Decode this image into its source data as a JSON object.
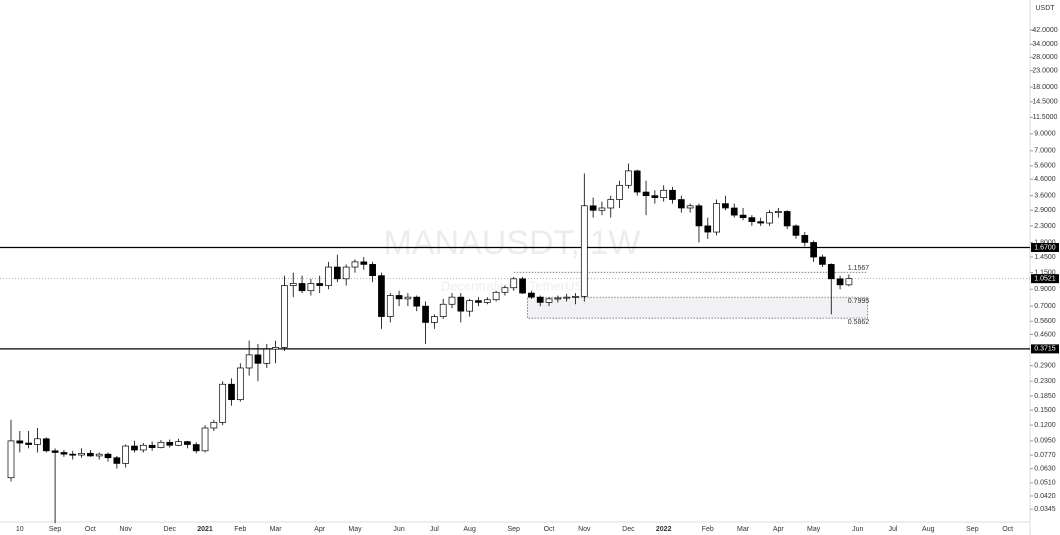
{
  "chart_data": {
    "type": "candlestick",
    "title": "MANAUSDT, 1W",
    "subtitle": "Decentraland / TetherUS",
    "currency": "USDT",
    "log_scale": true,
    "up_color": "#ffffff",
    "down_color": "#000000",
    "ylim": [
      0.0294,
      65.5
    ],
    "yticks": [
      {
        "value": 42,
        "label": "42.0000"
      },
      {
        "value": 34,
        "label": "34.0000"
      },
      {
        "value": 28,
        "label": "28.0000"
      },
      {
        "value": 23,
        "label": "23.0000"
      },
      {
        "value": 18,
        "label": "18.0000"
      },
      {
        "value": 14.5,
        "label": "14.5000"
      },
      {
        "value": 11.5,
        "label": "11.5000"
      },
      {
        "value": 9,
        "label": "9.0000"
      },
      {
        "value": 7,
        "label": "7.0000"
      },
      {
        "value": 5.6,
        "label": "5.6000"
      },
      {
        "value": 4.6,
        "label": "4.6000"
      },
      {
        "value": 3.6,
        "label": "3.6000"
      },
      {
        "value": 2.9,
        "label": "2.9000"
      },
      {
        "value": 2.3,
        "label": "2.3000"
      },
      {
        "value": 1.8,
        "label": "1.8000"
      },
      {
        "value": 1.45,
        "label": "1.4500"
      },
      {
        "value": 1.15,
        "label": "1.1500"
      },
      {
        "value": 0.9,
        "label": "0.9000"
      },
      {
        "value": 0.7,
        "label": "0.7000"
      },
      {
        "value": 0.56,
        "label": "0.5600"
      },
      {
        "value": 0.46,
        "label": "0.4600"
      },
      {
        "value": 0.29,
        "label": "0.2900"
      },
      {
        "value": 0.23,
        "label": "0.2300"
      },
      {
        "value": 0.185,
        "label": "0.1850"
      },
      {
        "value": 0.15,
        "label": "0.1500"
      },
      {
        "value": 0.12,
        "label": "0.1200"
      },
      {
        "value": 0.095,
        "label": "0.0950"
      },
      {
        "value": 0.077,
        "label": "0.0770"
      },
      {
        "value": 0.063,
        "label": "0.0630"
      },
      {
        "value": 0.051,
        "label": "0.0510"
      },
      {
        "value": 0.042,
        "label": "0.0420"
      },
      {
        "value": 0.0345,
        "label": "0.0345"
      }
    ],
    "categories": [
      null,
      "10",
      null,
      null,
      null,
      "Sep",
      null,
      null,
      null,
      "Oct",
      null,
      null,
      null,
      "Nov",
      null,
      null,
      null,
      null,
      "Dec",
      null,
      null,
      null,
      "2021",
      null,
      null,
      null,
      "Feb",
      null,
      null,
      null,
      "Mar",
      null,
      null,
      null,
      null,
      "Apr",
      null,
      null,
      null,
      "May",
      null,
      null,
      null,
      null,
      "Jun",
      null,
      null,
      null,
      "Jul",
      null,
      null,
      null,
      "Aug",
      null,
      null,
      null,
      null,
      "Sep",
      null,
      null,
      null,
      "Oct",
      null,
      null,
      null,
      "Nov",
      null,
      null,
      null,
      null,
      "Dec",
      null,
      null,
      null,
      "2022",
      null,
      null,
      null,
      null,
      "Feb",
      null,
      null,
      null,
      "Mar",
      null,
      null,
      null,
      "Apr",
      null,
      null,
      null,
      "May",
      null,
      null,
      null,
      null,
      "Jun",
      null,
      null,
      null,
      "Jul",
      null,
      null,
      null,
      "Aug",
      null,
      null,
      null,
      null,
      "Sep",
      null,
      null,
      null,
      "Oct",
      null
    ],
    "open": [
      0.055,
      0.095,
      0.092,
      0.09,
      0.098,
      0.082,
      0.08,
      0.078,
      0.077,
      0.079,
      0.076,
      0.078,
      0.074,
      0.068,
      0.088,
      0.083,
      0.089,
      0.086,
      0.093,
      0.089,
      0.094,
      0.09,
      0.082,
      0.115,
      0.125,
      0.22,
      0.175,
      0.28,
      0.34,
      0.3,
      0.37,
      0.38,
      0.95,
      0.98,
      0.88,
      0.98,
      0.95,
      1.25,
      1.05,
      1.25,
      1.35,
      1.3,
      1.1,
      0.6,
      0.82,
      0.78,
      0.8,
      0.7,
      0.55,
      0.6,
      0.72,
      0.8,
      0.65,
      0.76,
      0.74,
      0.77,
      0.86,
      0.92,
      1.05,
      0.85,
      0.8,
      0.74,
      0.78,
      0.79,
      0.8,
      0.81,
      3.1,
      2.9,
      3.0,
      3.4,
      4.2,
      5.2,
      3.8,
      3.6,
      3.5,
      3.9,
      3.4,
      3.0,
      3.1,
      2.3,
      2.1,
      3.2,
      3.0,
      2.7,
      2.6,
      2.45,
      2.4,
      2.8,
      2.85,
      2.3,
      2.0,
      1.8,
      1.45,
      1.3,
      1.05,
      0.96,
      null,
      null,
      null,
      null,
      null,
      null,
      null,
      null,
      null,
      null,
      null,
      null,
      null,
      null,
      null,
      null,
      null,
      null,
      null
    ],
    "high": [
      0.13,
      0.11,
      0.11,
      0.115,
      0.1,
      0.085,
      0.083,
      0.082,
      0.085,
      0.083,
      0.08,
      0.08,
      0.076,
      0.09,
      0.095,
      0.092,
      0.094,
      0.096,
      0.097,
      0.098,
      0.095,
      0.093,
      0.12,
      0.13,
      0.23,
      0.24,
      0.3,
      0.42,
      0.4,
      0.4,
      0.42,
      1.1,
      1.15,
      1.1,
      1.05,
      1.1,
      1.35,
      1.5,
      1.3,
      1.4,
      1.45,
      1.35,
      1.15,
      0.85,
      0.88,
      0.85,
      0.82,
      0.75,
      0.62,
      0.78,
      0.85,
      0.85,
      0.78,
      0.8,
      0.8,
      0.88,
      0.95,
      1.08,
      1.08,
      0.88,
      0.82,
      0.8,
      0.82,
      0.84,
      0.85,
      5.0,
      3.5,
      3.3,
      3.6,
      4.5,
      5.8,
      5.3,
      4.5,
      3.9,
      4.2,
      4.1,
      3.6,
      3.2,
      3.2,
      2.6,
      3.4,
      3.6,
      3.2,
      3.0,
      2.7,
      2.6,
      2.9,
      3.0,
      2.9,
      2.35,
      2.1,
      1.85,
      1.5,
      1.32,
      1.1,
      1.12,
      null,
      null,
      null,
      null,
      null,
      null,
      null,
      null,
      null,
      null,
      null,
      null,
      null,
      null,
      null,
      null,
      null,
      null,
      null
    ],
    "low": [
      0.052,
      0.08,
      0.085,
      0.08,
      0.08,
      0.028,
      0.075,
      0.072,
      0.074,
      0.075,
      0.072,
      0.07,
      0.063,
      0.064,
      0.08,
      0.08,
      0.082,
      0.085,
      0.086,
      0.088,
      0.085,
      0.079,
      0.08,
      0.11,
      0.12,
      0.16,
      0.17,
      0.25,
      0.23,
      0.28,
      0.3,
      0.36,
      0.8,
      0.85,
      0.82,
      0.85,
      0.9,
      1.0,
      0.95,
      1.15,
      1.2,
      1.0,
      0.5,
      0.55,
      0.7,
      0.7,
      0.65,
      0.4,
      0.5,
      0.58,
      0.68,
      0.55,
      0.6,
      0.7,
      0.72,
      0.75,
      0.82,
      0.88,
      0.84,
      0.78,
      0.7,
      0.7,
      0.74,
      0.75,
      0.72,
      0.75,
      2.6,
      2.7,
      2.6,
      3.0,
      4.0,
      3.6,
      2.7,
      3.2,
      3.3,
      3.2,
      2.8,
      2.8,
      1.8,
      1.9,
      2.0,
      2.9,
      2.6,
      2.5,
      2.3,
      2.3,
      2.3,
      2.6,
      2.2,
      1.9,
      1.7,
      1.35,
      1.25,
      0.62,
      0.9,
      0.94,
      null,
      null,
      null,
      null,
      null,
      null,
      null,
      null,
      null,
      null,
      null,
      null,
      null,
      null,
      null,
      null,
      null,
      null,
      null
    ],
    "close": [
      0.095,
      0.092,
      0.09,
      0.098,
      0.082,
      0.08,
      0.078,
      0.077,
      0.079,
      0.076,
      0.078,
      0.074,
      0.068,
      0.088,
      0.083,
      0.089,
      0.086,
      0.093,
      0.089,
      0.094,
      0.09,
      0.082,
      0.115,
      0.125,
      0.22,
      0.175,
      0.28,
      0.34,
      0.3,
      0.37,
      0.38,
      0.95,
      0.98,
      0.88,
      0.98,
      0.95,
      1.25,
      1.05,
      1.25,
      1.35,
      1.3,
      1.1,
      0.6,
      0.82,
      0.78,
      0.8,
      0.7,
      0.55,
      0.6,
      0.72,
      0.8,
      0.65,
      0.76,
      0.74,
      0.77,
      0.86,
      0.92,
      1.05,
      0.85,
      0.8,
      0.74,
      0.78,
      0.79,
      0.8,
      0.81,
      3.1,
      2.9,
      3.0,
      3.4,
      4.2,
      5.2,
      3.8,
      3.6,
      3.5,
      3.9,
      3.4,
      3.0,
      3.1,
      2.3,
      2.1,
      3.2,
      3.0,
      2.7,
      2.6,
      2.45,
      2.4,
      2.8,
      2.85,
      2.3,
      2.0,
      1.8,
      1.45,
      1.3,
      1.05,
      0.96,
      1.0521,
      null,
      null,
      null,
      null,
      null,
      null,
      null,
      null,
      null,
      null,
      null,
      null,
      null,
      null,
      null,
      null,
      null,
      null,
      null
    ],
    "levels": [
      {
        "value": 1.67,
        "label": "1.6700"
      },
      {
        "value": 0.3715,
        "label": "0.3715"
      }
    ],
    "dotted_level": {
      "value": 1.1567,
      "label": "1.1567"
    },
    "zone": {
      "top": 0.7995,
      "top_label": "0.7995",
      "bottom": 0.5862,
      "bottom_label": "0.5862"
    },
    "last_price": {
      "value": 1.0521,
      "label": "1.0521"
    }
  }
}
